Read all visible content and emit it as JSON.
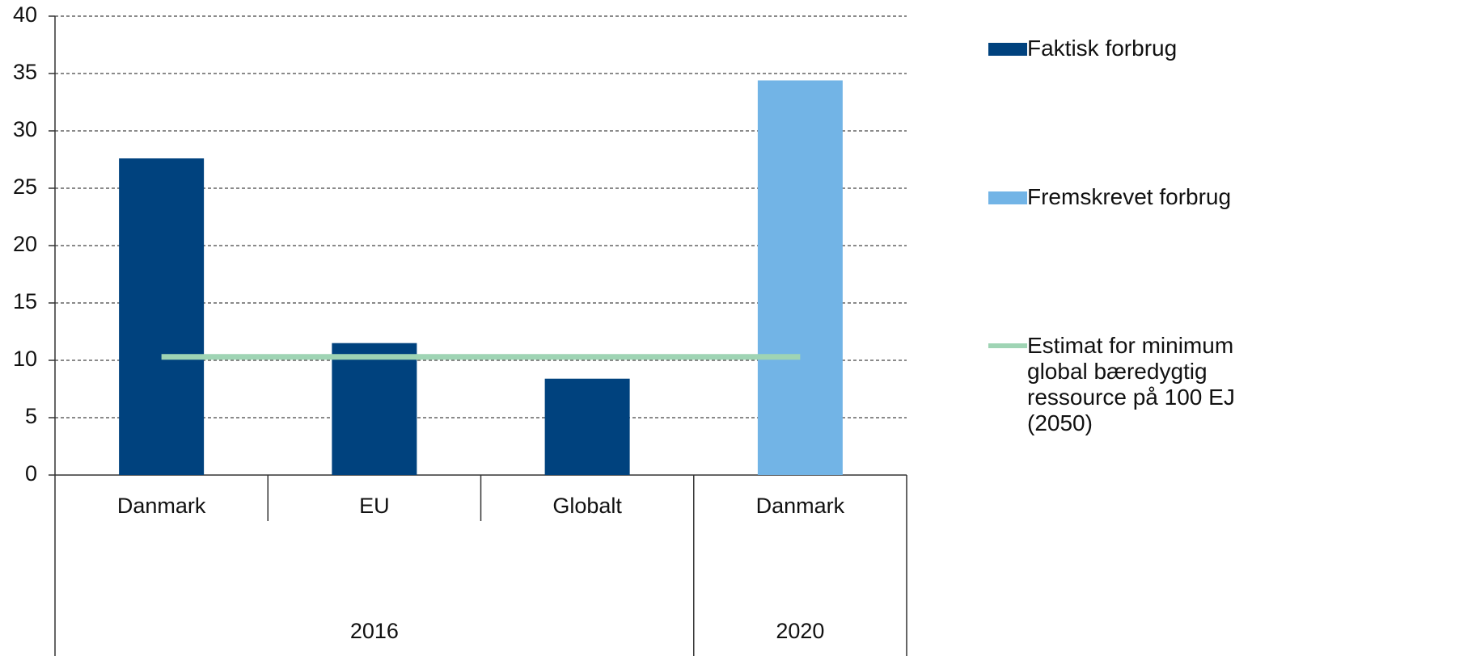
{
  "chart_data": {
    "type": "bar",
    "groups": [
      {
        "name": "2016",
        "categories": [
          "Danmark",
          "EU",
          "Globalt"
        ]
      },
      {
        "name": "2020",
        "categories": [
          "Danmark"
        ]
      }
    ],
    "series": [
      {
        "name": "Faktisk forbrug",
        "type": "bar",
        "color": "#00427e",
        "values": [
          27.6,
          11.5,
          8.4,
          null
        ]
      },
      {
        "name": "Fremskrevet forbrug",
        "type": "bar",
        "color": "#72b4e6",
        "values": [
          null,
          null,
          null,
          34.4
        ]
      },
      {
        "name": "Estimat for minimum global bæredygtig ressource på 100 EJ (2050)",
        "type": "line",
        "color": "#9fd4b4",
        "values": [
          10.3,
          10.3,
          10.3,
          10.3
        ]
      }
    ],
    "ylim": [
      0,
      40
    ],
    "yticks": [
      0,
      5,
      10,
      15,
      20,
      25,
      30,
      35,
      40
    ],
    "grid": true
  }
}
